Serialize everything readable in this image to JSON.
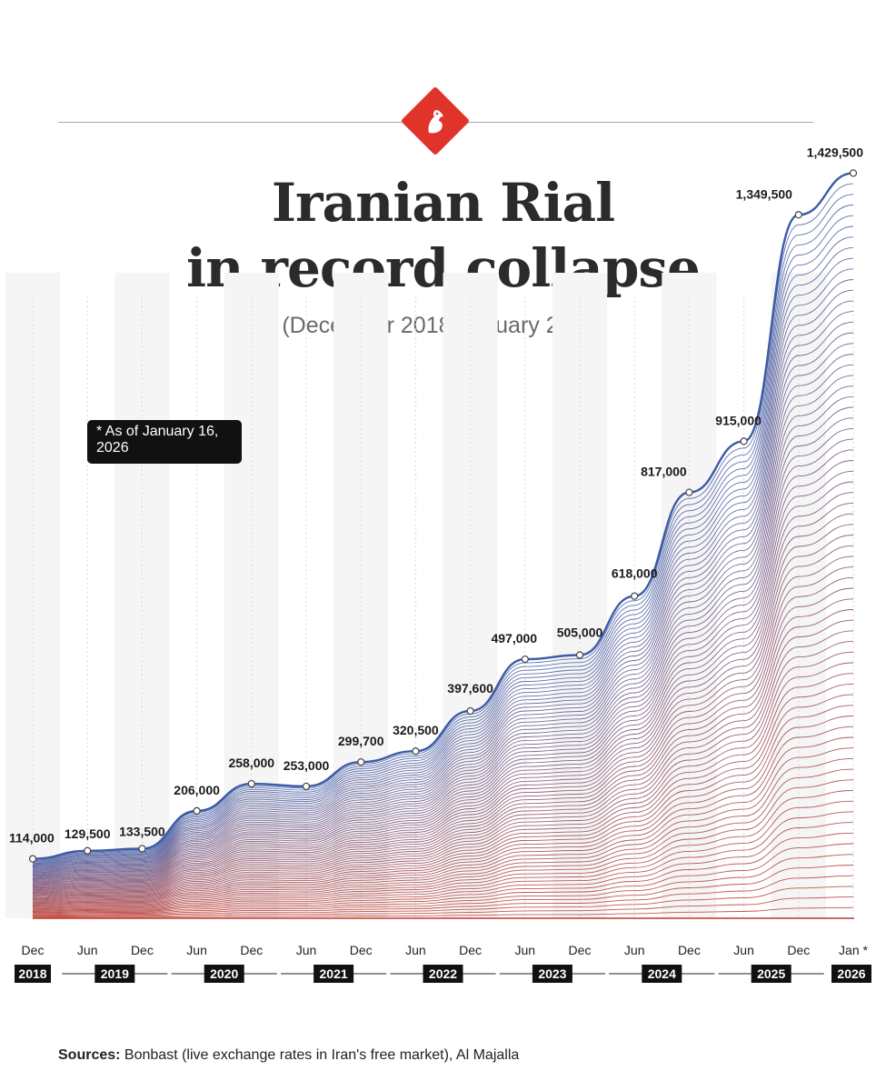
{
  "title_line1": "Iranian Rial",
  "title_line2": "in record collapse",
  "subtitle": "(December 2018-January 2026)",
  "note": "* As of January 16, 2026",
  "sources_label": "Sources:",
  "sources_text": " Bonbast (live exchange rates in Iran's free market), Al Majalla",
  "colors": {
    "top": "#3d5aa6",
    "bottom": "#c0392b",
    "accent": "#e0342b",
    "logo_icon": "horse-head-logo"
  },
  "chart_data": {
    "type": "area",
    "title": "Iranian Rial in record collapse",
    "subtitle": "(December 2018-January 2026)",
    "xlabel": "",
    "ylabel": "",
    "ylim": [
      0,
      1500000
    ],
    "grid": true,
    "points": [
      {
        "date": "2018-12",
        "label": "114,000",
        "value": 114000
      },
      {
        "date": "2019-06",
        "label": "129,500",
        "value": 129500
      },
      {
        "date": "2019-12",
        "label": "133,500",
        "value": 133500
      },
      {
        "date": "2020-06",
        "label": "206,000",
        "value": 206000
      },
      {
        "date": "2020-12",
        "label": "258,000",
        "value": 258000
      },
      {
        "date": "2021-06",
        "label": "253,000",
        "value": 253000
      },
      {
        "date": "2021-12",
        "label": "299,700",
        "value": 299700
      },
      {
        "date": "2022-06",
        "label": "320,500",
        "value": 320500
      },
      {
        "date": "2022-12",
        "label": "397,600",
        "value": 397600
      },
      {
        "date": "2023-06",
        "label": "497,000",
        "value": 497000
      },
      {
        "date": "2023-12",
        "label": "505,000",
        "value": 505000
      },
      {
        "date": "2024-06",
        "label": "618,000",
        "value": 618000
      },
      {
        "date": "2024-12",
        "label": "817,000",
        "value": 817000
      },
      {
        "date": "2025-06",
        "label": "915,000",
        "value": 915000
      },
      {
        "date": "2025-12",
        "label": "1,349,500",
        "value": 1349500
      },
      {
        "date": "2026-01",
        "label": "1,429,500",
        "value": 1429500
      }
    ],
    "month_ticks": [
      "Dec",
      "Jun",
      "Dec",
      "Jun",
      "Dec",
      "Jun",
      "Dec",
      "Jun",
      "Dec",
      "Jun",
      "Dec",
      "Jun",
      "Dec",
      "Jun",
      "Dec",
      "Jan *"
    ],
    "year_labels": [
      "2018",
      "2019",
      "2020",
      "2021",
      "2022",
      "2023",
      "2024",
      "2025",
      "2026"
    ]
  }
}
